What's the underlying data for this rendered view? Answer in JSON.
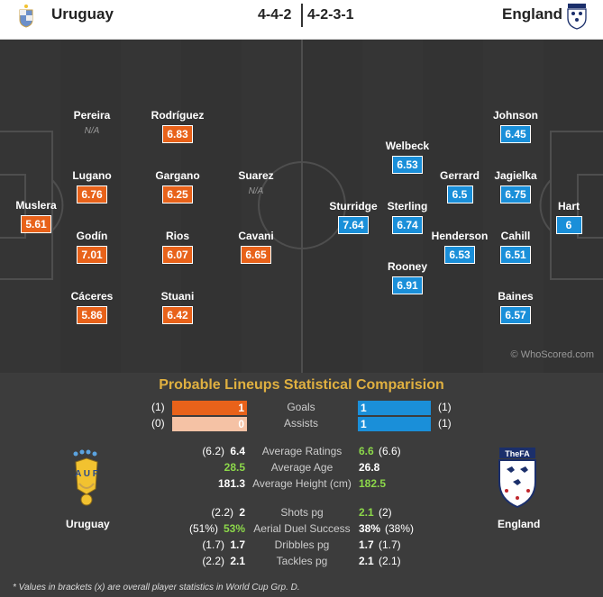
{
  "header": {
    "home_team": "Uruguay",
    "away_team": "England",
    "home_formation": "4-4-2",
    "away_formation": "4-2-3-1"
  },
  "colors": {
    "home": "#e8621a",
    "away": "#1a8fd9",
    "accent": "#e0b040",
    "positive": "#8cd84a"
  },
  "home_players": [
    {
      "name": "Muslera",
      "rating": "5.61"
    },
    {
      "name": "Pereira",
      "na": "N/A"
    },
    {
      "name": "Lugano",
      "rating": "6.76"
    },
    {
      "name": "Godín",
      "rating": "7.01"
    },
    {
      "name": "Cáceres",
      "rating": "5.86"
    },
    {
      "name": "Rodríguez",
      "rating": "6.83"
    },
    {
      "name": "Gargano",
      "rating": "6.25"
    },
    {
      "name": "Rios",
      "rating": "6.07"
    },
    {
      "name": "Stuani",
      "rating": "6.42"
    },
    {
      "name": "Suarez",
      "na": "N/A"
    },
    {
      "name": "Cavani",
      "rating": "6.65"
    }
  ],
  "away_players": [
    {
      "name": "Sturridge",
      "rating": "7.64"
    },
    {
      "name": "Welbeck",
      "rating": "6.53"
    },
    {
      "name": "Sterling",
      "rating": "6.74"
    },
    {
      "name": "Rooney",
      "rating": "6.91"
    },
    {
      "name": "Gerrard",
      "rating": "6.5"
    },
    {
      "name": "Henderson",
      "rating": "6.53"
    },
    {
      "name": "Johnson",
      "rating": "6.45"
    },
    {
      "name": "Jagielka",
      "rating": "6.75"
    },
    {
      "name": "Cahill",
      "rating": "6.51"
    },
    {
      "name": "Baines",
      "rating": "6.57"
    },
    {
      "name": "Hart",
      "rating": "6"
    }
  ],
  "watermark": "© WhoScored.com",
  "comparison": {
    "title": "Probable Lineups Statistical Comparision",
    "bars": [
      {
        "label": "Goals",
        "home": "1",
        "home_paren": "(1)",
        "away": "1",
        "away_paren": "(1)",
        "home_fill": 1,
        "away_fill": 1
      },
      {
        "label": "Assists",
        "home": "0",
        "home_paren": "(0)",
        "away": "1",
        "away_paren": "(1)",
        "home_fill": 0,
        "away_fill": 1
      }
    ],
    "stats": [
      {
        "label": "Average Ratings",
        "home_paren": "(6.2)",
        "home": "6.4",
        "away": "6.6",
        "away_paren": "(6.6)",
        "better": "away"
      },
      {
        "label": "Average Age",
        "home_paren": "",
        "home": "28.5",
        "away": "26.8",
        "away_paren": "",
        "better": "home"
      },
      {
        "label": "Average Height (cm)",
        "home_paren": "",
        "home": "181.3",
        "away": "182.5",
        "away_paren": "",
        "better": "away"
      },
      {
        "label": "Shots pg",
        "home_paren": "(2.2)",
        "home": "2",
        "away": "2.1",
        "away_paren": "(2)",
        "better": "away"
      },
      {
        "label": "Aerial Duel Success",
        "home_paren": "(51%)",
        "home": "53%",
        "away": "38%",
        "away_paren": "(38%)",
        "better": "home"
      },
      {
        "label": "Dribbles pg",
        "home_paren": "(1.7)",
        "home": "1.7",
        "away": "1.7",
        "away_paren": "(1.7)",
        "better": ""
      },
      {
        "label": "Tackles pg",
        "home_paren": "(2.2)",
        "home": "2.1",
        "away": "2.1",
        "away_paren": "(2.1)",
        "better": ""
      }
    ],
    "home_team_label": "Uruguay",
    "away_team_label": "England",
    "crest_text_en": "TheFA",
    "footnote": "* Values in brackets (x) are overall player statistics in World Cup Grp. D."
  }
}
